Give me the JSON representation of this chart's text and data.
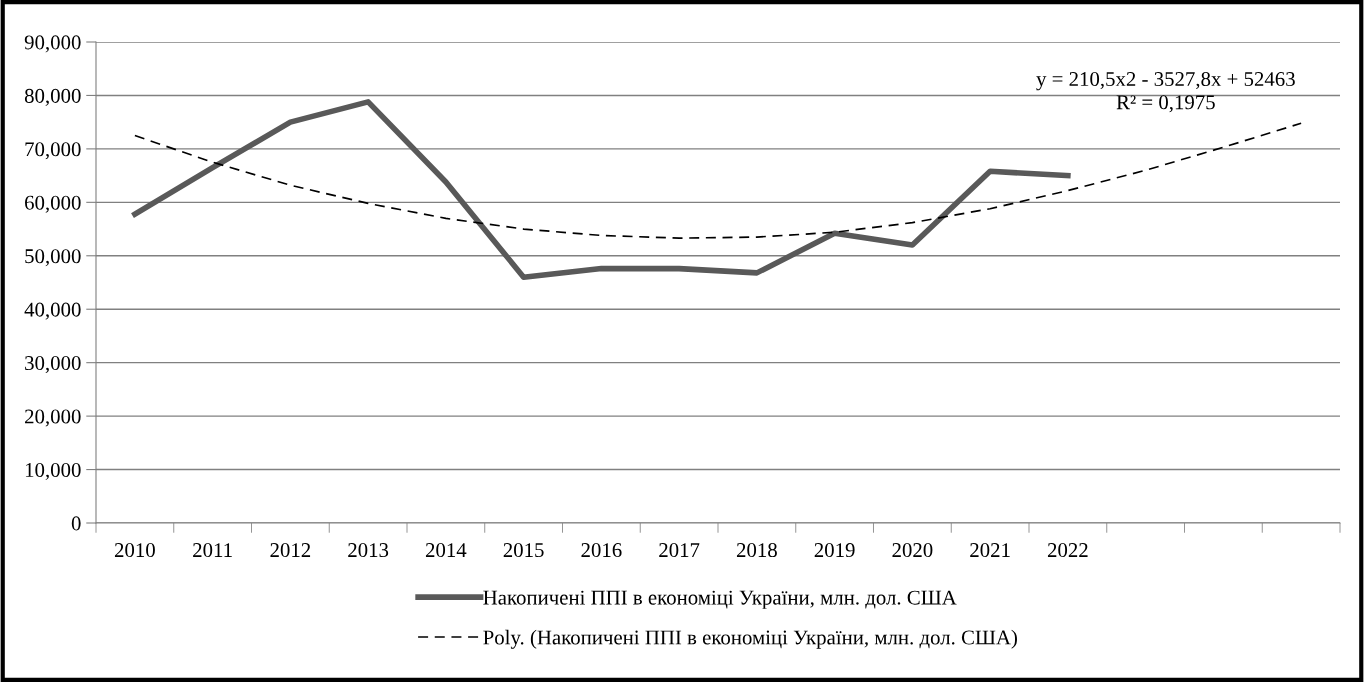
{
  "chart_data": {
    "type": "line",
    "categories": [
      "2010",
      "2011",
      "2012",
      "2013",
      "2014",
      "2015",
      "2016",
      "2017",
      "2018",
      "2019",
      "2020",
      "2021",
      "2022",
      null,
      null,
      null
    ],
    "series": [
      {
        "name": "Накопичені ППІ в економіці України, млн. дол. США",
        "color": "#595959",
        "values": [
          57800,
          66500,
          75000,
          78800,
          63800,
          46000,
          47600,
          47600,
          46800,
          54200,
          52000,
          65800,
          65000,
          null,
          null,
          null
        ],
        "line_style": "solid"
      },
      {
        "name": "Poly. (Накопичені ППІ в економіці України, млн. дол. США)",
        "color": "#000000",
        "values": [
          72500,
          67500,
          63200,
          59800,
          57000,
          55000,
          53800,
          53300,
          53500,
          54400,
          56200,
          58800,
          62200,
          66000,
          70300,
          74800
        ],
        "line_style": "dashed"
      }
    ],
    "ylim": [
      0,
      90000
    ],
    "yticks": [
      {
        "value": 0,
        "label": "0"
      },
      {
        "value": 10000,
        "label": "10,000"
      },
      {
        "value": 20000,
        "label": "20,000"
      },
      {
        "value": 30000,
        "label": "30,000"
      },
      {
        "value": 40000,
        "label": "40,000"
      },
      {
        "value": 50000,
        "label": "50,000"
      },
      {
        "value": 60000,
        "label": "60,000"
      },
      {
        "value": 70000,
        "label": "70,000"
      },
      {
        "value": 80000,
        "label": "80,000"
      },
      {
        "value": 90000,
        "label": "90,000"
      }
    ],
    "grid": "y",
    "legend": "bottom",
    "marker": "none",
    "annotations": [
      "y = 210,5x2 - 3527,8x + 52463\nR² = 0,1975"
    ]
  }
}
